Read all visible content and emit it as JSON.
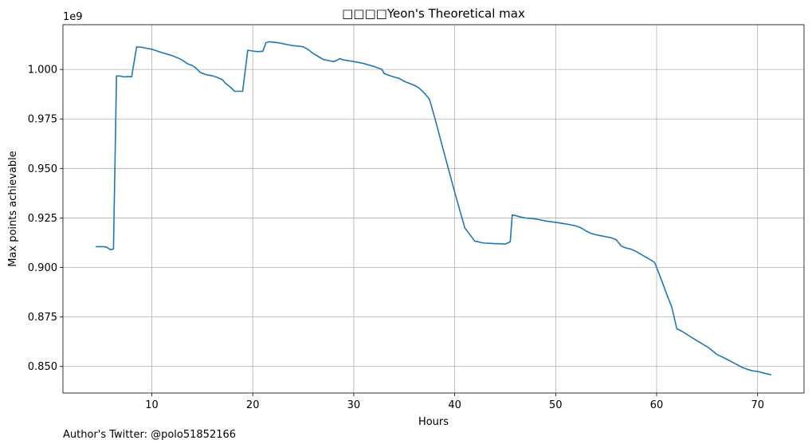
{
  "chart_data": {
    "type": "line",
    "title": "□□□□Yeon's Theoretical max",
    "xlabel": "Hours",
    "ylabel": "Max points achievable",
    "y_offset_label": "1e9",
    "xlim": [
      1.2,
      74.6
    ],
    "ylim": [
      0.8366,
      1.0226
    ],
    "x_ticks": [
      10,
      20,
      30,
      40,
      50,
      60,
      70
    ],
    "x_tick_labels": [
      "10",
      "20",
      "30",
      "40",
      "50",
      "60",
      "70"
    ],
    "y_ticks": [
      0.85,
      0.875,
      0.9,
      0.925,
      0.95,
      0.975,
      1.0
    ],
    "y_tick_labels": [
      "0.850",
      "0.875",
      "0.900",
      "0.925",
      "0.950",
      "0.975",
      "1.000"
    ],
    "grid": true,
    "series": [
      {
        "color": "#1f77b4",
        "x": [
          4.5,
          5.2,
          5.5,
          5.9,
          6.2,
          6.5,
          6.8,
          7.3,
          7.6,
          8.0,
          8.5,
          8.7,
          9.0,
          9.5,
          10.0,
          11.0,
          12.0,
          12.5,
          13.0,
          13.5,
          14.0,
          14.3,
          14.8,
          15.5,
          16.0,
          16.5,
          17.0,
          17.3,
          17.8,
          18.2,
          19.0,
          19.5,
          20.0,
          20.5,
          21.0,
          21.3,
          21.6,
          21.8,
          22.5,
          23.0,
          23.5,
          24.0,
          24.5,
          25.0,
          25.5,
          26.0,
          26.5,
          27.0,
          27.5,
          28.0,
          28.3,
          28.6,
          29.0,
          30.0,
          31.0,
          32.0,
          32.8,
          33.0,
          33.5,
          34.0,
          34.5,
          35.0,
          35.5,
          36.0,
          36.5,
          37.0,
          37.5,
          38.0,
          39.0,
          40.0,
          41.0,
          42.0,
          42.3,
          42.7,
          43.0,
          43.5,
          44.0,
          44.5,
          45.0,
          45.3,
          45.5,
          45.7,
          46.0,
          46.5,
          47.0,
          47.5,
          48.0,
          48.5,
          49.0,
          50.0,
          51.0,
          52.0,
          52.5,
          53.0,
          53.5,
          54.0,
          54.5,
          55.0,
          55.5,
          56.0,
          56.5,
          57.0,
          57.5,
          58.0,
          58.5,
          59.0,
          59.5,
          59.8,
          60.0,
          60.5,
          61.0,
          61.5,
          62.0,
          62.5,
          63.0,
          64.0,
          65.0,
          66.0,
          66.5,
          67.0,
          67.5,
          68.0,
          68.5,
          69.0,
          69.5,
          70.0,
          70.5,
          71.0,
          71.3
        ],
        "y": [
          0.9105,
          0.9105,
          0.9103,
          0.909,
          0.9093,
          0.9967,
          0.9967,
          0.9962,
          0.9964,
          0.9963,
          1.0114,
          1.0113,
          1.0112,
          1.0107,
          1.0102,
          1.0085,
          1.007,
          1.006,
          1.0048,
          1.003,
          1.002,
          1.001,
          0.9985,
          0.9972,
          0.9968,
          0.996,
          0.9948,
          0.993,
          0.991,
          0.989,
          0.989,
          1.0097,
          1.0093,
          1.009,
          1.0092,
          1.0135,
          1.014,
          1.0139,
          1.0135,
          1.013,
          1.0125,
          1.012,
          1.0118,
          1.0114,
          1.01,
          1.008,
          1.0065,
          1.005,
          1.0045,
          1.004,
          1.0045,
          1.0055,
          1.0048,
          1.004,
          1.003,
          1.0015,
          1.0,
          0.998,
          0.997,
          0.9962,
          0.9955,
          0.994,
          0.993,
          0.992,
          0.9905,
          0.988,
          0.985,
          0.976,
          0.957,
          0.938,
          0.92,
          0.9132,
          0.913,
          0.9125,
          0.9123,
          0.9122,
          0.912,
          0.912,
          0.9118,
          0.9125,
          0.913,
          0.9265,
          0.9262,
          0.9255,
          0.925,
          0.9248,
          0.9245,
          0.924,
          0.9235,
          0.9228,
          0.922,
          0.921,
          0.92,
          0.9185,
          0.9172,
          0.9165,
          0.916,
          0.9155,
          0.915,
          0.914,
          0.9108,
          0.9098,
          0.9092,
          0.908,
          0.9065,
          0.905,
          0.9035,
          0.9025,
          0.9,
          0.8935,
          0.8865,
          0.88,
          0.869,
          0.8678,
          0.8662,
          0.863,
          0.86,
          0.856,
          0.8548,
          0.8535,
          0.8522,
          0.8508,
          0.8495,
          0.8485,
          0.8478,
          0.8475,
          0.8468,
          0.8462,
          0.8458
        ]
      }
    ]
  },
  "footer": {
    "credit": "Author's Twitter: @polo51852166"
  }
}
